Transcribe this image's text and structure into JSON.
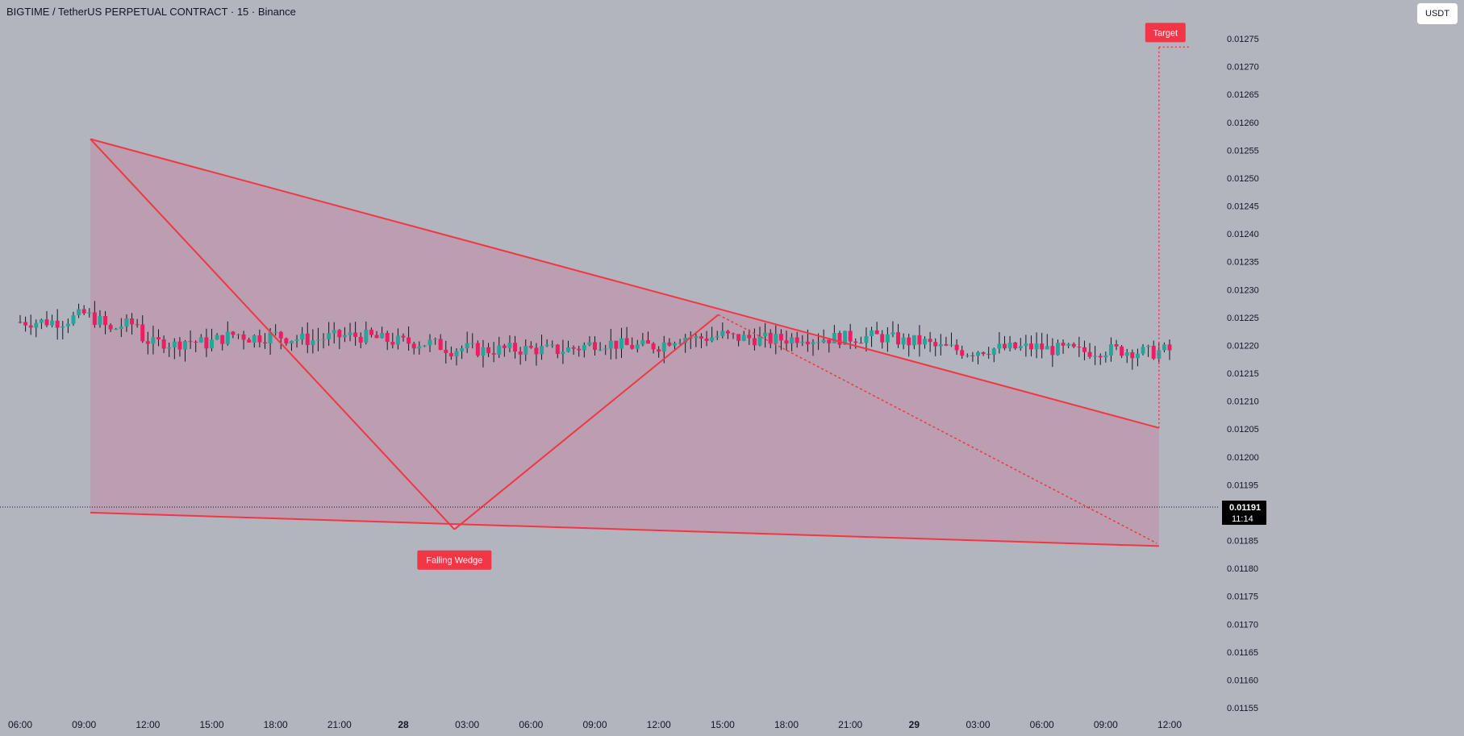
{
  "header": {
    "title": "BIGTIME / TetherUS PERPETUAL CONTRACT · 15 · Binance",
    "currency": "USDT"
  },
  "price_tag": {
    "price": "0.01191",
    "countdown": "11:14"
  },
  "annotations": {
    "pattern_label": "Falling Wedge",
    "target_label": "Target"
  },
  "colors": {
    "background": "#b2b5be",
    "up": "#26a69a",
    "down": "#e91e63",
    "pattern": "#f23645",
    "label_bg": "#f23645",
    "price_tag_bg": "#000000"
  },
  "chart_data": {
    "type": "candlestick",
    "symbol": "BIGTIME/USDT",
    "timeframe": "15",
    "exchange": "Binance",
    "ylim": [
      0.01155,
      0.01278
    ],
    "y_ticks": [
      "0.01155",
      "0.01160",
      "0.01165",
      "0.01170",
      "0.01175",
      "0.01180",
      "0.01185",
      "0.01190",
      "0.01195",
      "0.01200",
      "0.01205",
      "0.01210",
      "0.01215",
      "0.01220",
      "0.01225",
      "0.01230",
      "0.01235",
      "0.01240",
      "0.01245",
      "0.01250",
      "0.01255",
      "0.01260",
      "0.01265",
      "0.01270",
      "0.01275"
    ],
    "x_ticks": [
      "06:00",
      "09:00",
      "12:00",
      "15:00",
      "18:00",
      "21:00",
      "28",
      "03:00",
      "06:00",
      "09:00",
      "12:00",
      "15:00",
      "18:00",
      "21:00",
      "29",
      "03:00",
      "06:00",
      "09:00",
      "12:00"
    ],
    "x_tick_bold": [
      false,
      false,
      false,
      false,
      false,
      false,
      true,
      false,
      false,
      false,
      false,
      false,
      false,
      false,
      true,
      false,
      false,
      false,
      false
    ],
    "x_tick_hours": [
      6,
      9,
      12,
      15,
      18,
      21,
      24,
      27,
      30,
      33,
      36,
      39,
      42,
      45,
      48,
      51,
      54,
      57,
      60
    ],
    "last_price": 0.01191,
    "anchors": [
      [
        6,
        12242
      ],
      [
        8.2,
        12243
      ],
      [
        9.1,
        12254
      ],
      [
        9.3,
        12257
      ],
      [
        9.6,
        12250
      ],
      [
        10.0,
        12243
      ],
      [
        10.5,
        12225
      ],
      [
        11.0,
        12236
      ],
      [
        11.8,
        12239
      ],
      [
        12.0,
        12214
      ],
      [
        12.5,
        12203
      ],
      [
        13.0,
        12206
      ],
      [
        13.5,
        12201
      ],
      [
        14.0,
        12209
      ],
      [
        15.0,
        12203
      ],
      [
        15.5,
        12210
      ],
      [
        16.4,
        12221
      ],
      [
        17.0,
        12214
      ],
      [
        17.8,
        12216
      ],
      [
        18.2,
        12219
      ],
      [
        18.7,
        12214
      ],
      [
        19.5,
        12211
      ],
      [
        20.0,
        12209
      ],
      [
        20.6,
        12214
      ],
      [
        21.5,
        12217
      ],
      [
        22.5,
        12216
      ],
      [
        23.5,
        12209
      ],
      [
        24.5,
        12205
      ],
      [
        25.5,
        12204
      ],
      [
        26.0,
        12199
      ],
      [
        26.5,
        12192
      ],
      [
        27.0,
        12195
      ],
      [
        28.0,
        12191
      ],
      [
        29.0,
        12193
      ],
      [
        30.5,
        12193
      ],
      [
        31.5,
        12191
      ],
      [
        32.5,
        12196
      ],
      [
        33.3,
        12205
      ],
      [
        34.0,
        12204
      ],
      [
        34.7,
        12199
      ],
      [
        35.5,
        12198
      ],
      [
        36.3,
        12200
      ],
      [
        36.8,
        12211
      ],
      [
        37.5,
        12216
      ],
      [
        38.0,
        12212
      ],
      [
        38.7,
        12215
      ],
      [
        39.3,
        12219
      ],
      [
        39.6,
        12214
      ],
      [
        40.5,
        12213
      ],
      [
        41.5,
        12210
      ],
      [
        42.5,
        12212
      ],
      [
        43.0,
        12217
      ],
      [
        43.5,
        12212
      ],
      [
        44.5,
        12213
      ],
      [
        45.5,
        12214
      ],
      [
        46.5,
        12216
      ],
      [
        47.4,
        12211
      ],
      [
        47.8,
        12206
      ],
      [
        48.3,
        12207
      ],
      [
        48.8,
        12205
      ],
      [
        49.2,
        12197
      ],
      [
        50.0,
        12194
      ],
      [
        50.8,
        12188
      ],
      [
        51.3,
        12192
      ],
      [
        52.0,
        12194
      ],
      [
        53.0,
        12195
      ],
      [
        54.0,
        12197
      ],
      [
        54.6,
        12193
      ],
      [
        55.5,
        12192
      ],
      [
        56.0,
        12188
      ],
      [
        57.0,
        12191
      ],
      [
        57.5,
        12192
      ],
      [
        58.3,
        12190
      ],
      [
        59.0,
        12188
      ],
      [
        59.5,
        12187
      ],
      [
        59.9,
        12191
      ]
    ],
    "seed": 7,
    "wedge_upper": {
      "from": [
        9.3,
        0.01257
      ],
      "to": [
        59.5,
        0.012052
      ]
    },
    "wedge_lower": {
      "from": [
        9.3,
        0.0119
      ],
      "to": [
        59.5,
        0.01184
      ]
    },
    "zigzag": [
      [
        9.3,
        0.01257
      ],
      [
        26.4,
        0.01187
      ],
      [
        38.8,
        0.012255
      ],
      [
        59.4,
        0.011845
      ]
    ],
    "target": {
      "time": 59.5,
      "price": 0.012735,
      "label": "Target"
    },
    "pattern": {
      "name": "Falling Wedge",
      "label_time": 26.4,
      "label_price": 0.011815
    }
  }
}
